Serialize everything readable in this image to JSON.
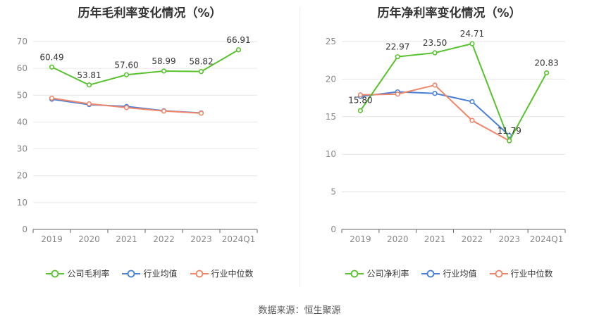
{
  "source_label": "数据来源：恒生聚源",
  "chart_data": [
    {
      "type": "line",
      "title": "历年毛利率变化情况（%）",
      "categories": [
        "2019",
        "2020",
        "2021",
        "2022",
        "2023",
        "2024Q1"
      ],
      "ylim": [
        0,
        70
      ],
      "yticks": [
        0,
        10,
        20,
        30,
        40,
        50,
        60,
        70
      ],
      "grid": true,
      "legend_position": "bottom",
      "series": [
        {
          "name": "公司毛利率",
          "color": "#58c22e",
          "values": [
            60.49,
            53.81,
            57.6,
            58.99,
            58.82,
            66.91
          ],
          "labels": [
            "60.49",
            "53.81",
            "57.60",
            "58.99",
            "58.82",
            "66.91"
          ]
        },
        {
          "name": "行业均值",
          "color": "#4a7fd6",
          "values": [
            48.5,
            46.5,
            45.8,
            44.2,
            43.4,
            null
          ]
        },
        {
          "name": "行业中位数",
          "color": "#f0866a",
          "values": [
            48.9,
            46.8,
            45.4,
            44.1,
            43.3,
            null
          ]
        }
      ]
    },
    {
      "type": "line",
      "title": "历年净利率变化情况（%）",
      "categories": [
        "2019",
        "2020",
        "2021",
        "2022",
        "2023",
        "2024Q1"
      ],
      "ylim": [
        0,
        25
      ],
      "yticks": [
        0,
        5,
        10,
        15,
        20,
        25
      ],
      "grid": true,
      "legend_position": "bottom",
      "series": [
        {
          "name": "公司净利率",
          "color": "#58c22e",
          "values": [
            15.8,
            22.97,
            23.5,
            24.71,
            11.79,
            20.83
          ],
          "labels": [
            "15.80",
            "22.97",
            "23.50",
            "24.71",
            "11.79",
            "20.83"
          ]
        },
        {
          "name": "行业均值",
          "color": "#4a7fd6",
          "values": [
            17.7,
            18.3,
            18.1,
            17.0,
            12.5,
            null
          ]
        },
        {
          "name": "行业中位数",
          "color": "#f0866a",
          "values": [
            17.9,
            18.0,
            19.2,
            14.5,
            11.8,
            null
          ]
        }
      ]
    }
  ]
}
